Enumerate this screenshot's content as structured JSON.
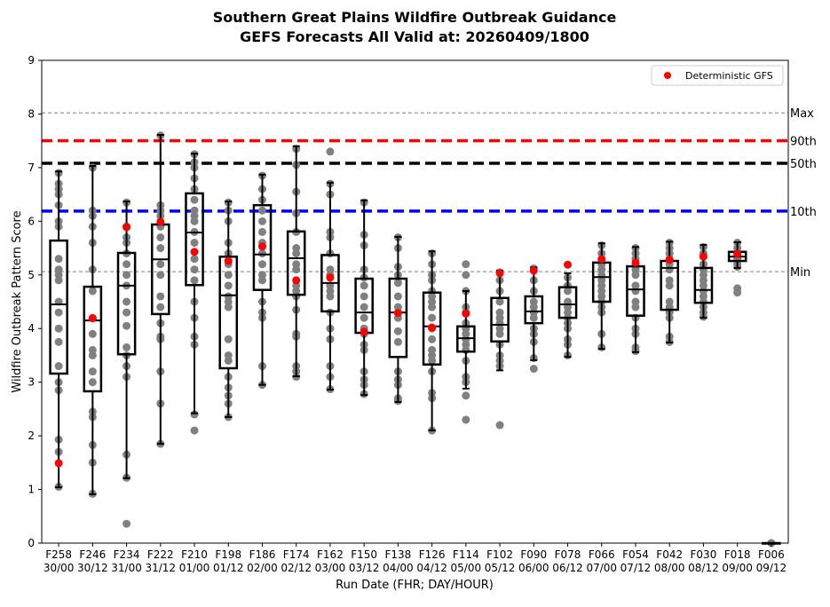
{
  "chart_data": {
    "type": "box",
    "title": [
      "Southern Great Plains Wildfire Outbreak Guidance",
      "GEFS Forecasts All Valid at: 20260409/1800"
    ],
    "xlabel": "Run Date (FHR; DAY/HOUR)",
    "ylabel": "Wildfire Outbreak Pattern Score",
    "ylim": [
      0,
      9
    ],
    "yticks": [
      "0",
      "1",
      "2",
      "3",
      "4",
      "5",
      "6",
      "7",
      "8",
      "9"
    ],
    "legend": {
      "label": "Deterministic GFS",
      "placement": "top-right",
      "color": "#ff0000"
    },
    "reference_lines": [
      {
        "label": "Max",
        "value": 8.02,
        "color": "#808080",
        "style": "thin-dashed"
      },
      {
        "label": "90th",
        "value": 7.5,
        "color": "#ff0000",
        "style": "thick-dashed"
      },
      {
        "label": "50th",
        "value": 7.08,
        "color": "#000000",
        "style": "thick-dashed"
      },
      {
        "label": "10th",
        "value": 6.19,
        "color": "#0000ff",
        "style": "thick-dashed"
      },
      {
        "label": "Min",
        "value": 5.06,
        "color": "#808080",
        "style": "thin-dashed"
      }
    ],
    "member_color": "#808080",
    "categories": [
      {
        "fhr": "F258",
        "date": "30/00",
        "whislo": 1.04,
        "q1": 3.16,
        "med": 4.45,
        "q3": 5.64,
        "whishi": 6.93,
        "det": 1.49,
        "members": [
          6.9,
          6.7,
          6.6,
          6.5,
          6.3,
          6.0,
          5.9,
          5.3,
          5.1,
          5.0,
          4.9,
          4.5,
          4.3,
          4.0,
          3.75,
          3.3,
          3.0,
          2.85,
          1.93,
          1.7,
          1.05
        ]
      },
      {
        "fhr": "F246",
        "date": "30/12",
        "whislo": 0.91,
        "q1": 2.83,
        "med": 4.15,
        "q3": 4.78,
        "whishi": 7.03,
        "det": 4.19,
        "members": [
          7.0,
          6.2,
          6.1,
          5.9,
          5.6,
          5.1,
          4.7,
          4.2,
          3.9,
          3.6,
          3.5,
          3.2,
          3.0,
          2.45,
          2.35,
          1.83,
          1.5,
          0.92
        ]
      },
      {
        "fhr": "F234",
        "date": "31/00",
        "whislo": 1.21,
        "q1": 3.52,
        "med": 4.8,
        "q3": 5.41,
        "whishi": 6.37,
        "det": 5.89,
        "members": [
          6.35,
          5.9,
          5.7,
          5.6,
          5.4,
          5.2,
          5.0,
          4.8,
          4.5,
          4.3,
          4.05,
          3.65,
          3.5,
          3.3,
          3.1,
          1.65,
          1.22,
          0.36
        ]
      },
      {
        "fhr": "F222",
        "date": "31/12",
        "whislo": 1.85,
        "q1": 4.27,
        "med": 5.29,
        "q3": 5.94,
        "whishi": 7.61,
        "det": 5.99,
        "members": [
          7.6,
          6.3,
          6.2,
          6.1,
          5.9,
          5.7,
          5.5,
          5.2,
          5.0,
          4.6,
          4.4,
          4.1,
          3.85,
          3.8,
          3.2,
          2.6,
          1.85
        ]
      },
      {
        "fhr": "F210",
        "date": "01/00",
        "whislo": 2.42,
        "q1": 4.81,
        "med": 5.79,
        "q3": 6.52,
        "whishi": 7.26,
        "det": 5.43,
        "members": [
          7.25,
          7.1,
          7.0,
          6.8,
          6.6,
          6.4,
          6.2,
          6.1,
          6.0,
          5.8,
          5.6,
          5.3,
          5.1,
          4.9,
          4.5,
          4.2,
          3.85,
          3.7,
          2.4,
          2.1
        ]
      },
      {
        "fhr": "F198",
        "date": "01/12",
        "whislo": 2.35,
        "q1": 3.26,
        "med": 4.62,
        "q3": 5.34,
        "whishi": 6.37,
        "det": 5.26,
        "members": [
          6.35,
          6.2,
          6.0,
          5.6,
          5.4,
          5.2,
          5.0,
          4.8,
          4.6,
          4.5,
          4.4,
          3.8,
          3.5,
          3.4,
          3.1,
          2.9,
          2.75,
          2.6,
          2.35
        ]
      },
      {
        "fhr": "F186",
        "date": "02/00",
        "whislo": 2.95,
        "q1": 4.72,
        "med": 5.38,
        "q3": 6.3,
        "whishi": 6.87,
        "det": 5.53,
        "members": [
          6.85,
          6.6,
          6.4,
          6.2,
          6.0,
          5.8,
          5.6,
          5.4,
          5.2,
          5.0,
          4.9,
          4.5,
          4.3,
          4.2,
          3.3,
          2.95
        ]
      },
      {
        "fhr": "F174",
        "date": "02/12",
        "whislo": 3.11,
        "q1": 4.63,
        "med": 5.31,
        "q3": 5.81,
        "whishi": 7.4,
        "det": 4.9,
        "members": [
          7.35,
          7.05,
          6.55,
          6.15,
          5.8,
          5.5,
          5.4,
          5.2,
          5.1,
          4.8,
          4.7,
          4.6,
          4.35,
          3.9,
          3.85,
          3.3,
          3.2,
          3.1
        ]
      },
      {
        "fhr": "F162",
        "date": "03/00",
        "whislo": 2.86,
        "q1": 4.32,
        "med": 4.85,
        "q3": 5.37,
        "whishi": 6.72,
        "det": 4.95,
        "members": [
          7.3,
          6.7,
          6.5,
          5.8,
          5.7,
          5.4,
          5.1,
          5.0,
          4.8,
          4.7,
          4.6,
          4.3,
          4.0,
          3.8,
          3.3,
          3.1,
          2.87
        ]
      },
      {
        "fhr": "F150",
        "date": "03/12",
        "whislo": 2.76,
        "q1": 3.92,
        "med": 4.3,
        "q3": 4.93,
        "whishi": 6.39,
        "det": 3.94,
        "members": [
          6.35,
          5.75,
          5.55,
          5.1,
          4.95,
          4.8,
          4.6,
          4.4,
          4.2,
          4.0,
          3.9,
          3.7,
          3.6,
          3.2,
          3.05,
          2.95,
          2.78
        ]
      },
      {
        "fhr": "F138",
        "date": "04/00",
        "whislo": 2.63,
        "q1": 3.47,
        "med": 4.3,
        "q3": 4.93,
        "whishi": 5.71,
        "det": 4.29,
        "members": [
          5.7,
          5.5,
          5.15,
          5.0,
          4.85,
          4.6,
          4.4,
          4.3,
          4.2,
          3.95,
          3.75,
          3.2,
          3.05,
          2.95,
          2.7,
          2.65
        ]
      },
      {
        "fhr": "F126",
        "date": "04/12",
        "whislo": 2.1,
        "q1": 3.33,
        "med": 4.04,
        "q3": 4.67,
        "whishi": 5.44,
        "det": 4.02,
        "members": [
          5.4,
          5.2,
          5.0,
          4.9,
          4.7,
          4.6,
          4.5,
          4.4,
          4.2,
          4.0,
          3.8,
          3.6,
          3.5,
          3.4,
          3.2,
          2.8,
          2.7,
          2.1
        ]
      },
      {
        "fhr": "F114",
        "date": "05/00",
        "whislo": 2.88,
        "q1": 3.57,
        "med": 3.82,
        "q3": 4.04,
        "whishi": 4.7,
        "det": 4.28,
        "members": [
          5.2,
          5.0,
          4.7,
          4.4,
          4.3,
          4.1,
          4.0,
          3.9,
          3.8,
          3.7,
          3.6,
          3.4,
          3.1,
          3.0,
          2.75,
          2.3
        ]
      },
      {
        "fhr": "F102",
        "date": "05/12",
        "whislo": 3.22,
        "q1": 3.76,
        "med": 4.07,
        "q3": 4.57,
        "whishi": 5.08,
        "det": 5.03,
        "members": [
          5.05,
          4.9,
          4.7,
          4.5,
          4.3,
          4.2,
          4.1,
          4.0,
          3.9,
          3.7,
          3.5,
          3.4,
          3.3,
          2.2
        ]
      },
      {
        "fhr": "F090",
        "date": "06/00",
        "whislo": 3.41,
        "q1": 4.1,
        "med": 4.32,
        "q3": 4.6,
        "whishi": 5.14,
        "det": 5.08,
        "members": [
          5.12,
          4.9,
          4.7,
          4.5,
          4.4,
          4.3,
          4.2,
          4.0,
          3.9,
          3.75,
          3.45,
          3.25
        ]
      },
      {
        "fhr": "F078",
        "date": "06/12",
        "whislo": 3.47,
        "q1": 4.2,
        "med": 4.45,
        "q3": 4.77,
        "whishi": 5.03,
        "det": 5.19,
        "members": [
          4.95,
          4.8,
          4.7,
          4.5,
          4.4,
          4.3,
          4.2,
          4.1,
          4.0,
          3.8,
          3.7,
          3.5
        ]
      },
      {
        "fhr": "F066",
        "date": "07/00",
        "whislo": 3.62,
        "q1": 4.5,
        "med": 4.96,
        "q3": 5.23,
        "whishi": 5.59,
        "det": 5.29,
        "members": [
          5.55,
          5.4,
          5.3,
          5.2,
          5.1,
          5.0,
          4.9,
          4.8,
          4.7,
          4.6,
          4.5,
          4.4,
          4.3,
          3.9,
          3.65
        ]
      },
      {
        "fhr": "F054",
        "date": "07/12",
        "whislo": 3.56,
        "q1": 4.24,
        "med": 4.73,
        "q3": 5.16,
        "whishi": 5.52,
        "det": 5.23,
        "members": [
          5.5,
          5.4,
          5.3,
          5.2,
          5.1,
          5.0,
          4.8,
          4.7,
          4.5,
          4.4,
          4.2,
          4.0,
          3.9,
          3.65,
          3.58
        ]
      },
      {
        "fhr": "F042",
        "date": "08/00",
        "whislo": 3.74,
        "q1": 4.35,
        "med": 5.13,
        "q3": 5.26,
        "whishi": 5.62,
        "det": 5.28,
        "members": [
          5.6,
          5.5,
          5.4,
          5.3,
          5.2,
          5.1,
          4.9,
          4.8,
          4.5,
          4.4,
          4.3,
          4.2,
          3.85,
          3.75
        ]
      },
      {
        "fhr": "F030",
        "date": "08/12",
        "whislo": 4.2,
        "q1": 4.48,
        "med": 4.72,
        "q3": 5.13,
        "whishi": 5.56,
        "det": 5.34,
        "members": [
          5.52,
          5.4,
          5.2,
          5.1,
          5.0,
          4.9,
          4.8,
          4.7,
          4.6,
          4.5,
          4.4,
          4.3,
          4.22
        ]
      },
      {
        "fhr": "F018",
        "date": "09/00",
        "whislo": 5.13,
        "q1": 5.26,
        "med": 5.34,
        "q3": 5.43,
        "whishi": 5.61,
        "det": 5.39,
        "members": [
          5.6,
          5.5,
          5.4,
          5.35,
          5.3,
          5.2,
          5.15,
          4.75,
          4.67
        ]
      },
      {
        "fhr": "F006",
        "date": "09/12",
        "whislo": 0,
        "q1": 0,
        "med": 0,
        "q3": 0,
        "whishi": 0,
        "det": null,
        "members": [
          0,
          0
        ]
      }
    ]
  }
}
